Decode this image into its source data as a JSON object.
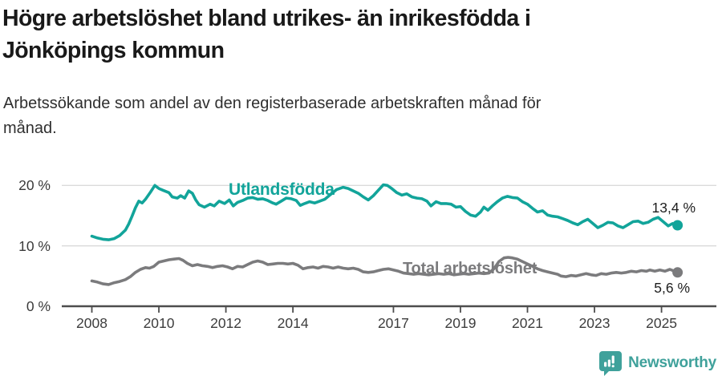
{
  "header": {
    "title_line1": "Högre arbetslöshet bland utrikes- än inrikesfödda i",
    "title_line2": "Jönköpings kommun",
    "subtitle_line1": "Arbetssökande som andel av den registerbaserade arbetskraften månad för",
    "subtitle_line2": "månad."
  },
  "branding": {
    "logo_text": "Newsworthy",
    "brand_color": "#3fa19b"
  },
  "chart_data": {
    "type": "line",
    "unit": "%",
    "grid": "horizontal-only",
    "colors": {
      "utlandsfodda": "#12a49a",
      "total": "#7b7b7d",
      "gridline": "#dadada",
      "axis": "#4d4d4d"
    },
    "x_axis": {
      "ticks": [
        2008,
        2010,
        2012,
        2014,
        2017,
        2019,
        2021,
        2023,
        2025
      ],
      "labels": [
        "2008",
        "2010",
        "2012",
        "2014",
        "2017",
        "2019",
        "2021",
        "2023",
        "2025"
      ],
      "range": [
        2007.9,
        2026.6
      ]
    },
    "y_axis": {
      "ticks": [
        0,
        10,
        20
      ],
      "labels": [
        "0 %",
        "10 %",
        "20 %"
      ],
      "range": [
        0,
        21
      ]
    },
    "series": [
      {
        "name": "Utlandsfödda",
        "color": "#12a49a",
        "end_label": "13,4 %",
        "end_value": 13.4,
        "points": [
          [
            2008.0,
            11.6
          ],
          [
            2008.17,
            11.3
          ],
          [
            2008.33,
            11.1
          ],
          [
            2008.5,
            11.0
          ],
          [
            2008.67,
            11.2
          ],
          [
            2008.83,
            11.7
          ],
          [
            2009.0,
            12.6
          ],
          [
            2009.1,
            13.6
          ],
          [
            2009.2,
            14.9
          ],
          [
            2009.3,
            16.3
          ],
          [
            2009.4,
            17.4
          ],
          [
            2009.5,
            17.1
          ],
          [
            2009.6,
            17.7
          ],
          [
            2009.75,
            18.9
          ],
          [
            2009.88,
            20.0
          ],
          [
            2010.0,
            19.5
          ],
          [
            2010.12,
            19.2
          ],
          [
            2010.3,
            18.8
          ],
          [
            2010.4,
            18.1
          ],
          [
            2010.55,
            17.9
          ],
          [
            2010.65,
            18.3
          ],
          [
            2010.77,
            17.9
          ],
          [
            2010.89,
            19.1
          ],
          [
            2011.0,
            18.7
          ],
          [
            2011.1,
            17.6
          ],
          [
            2011.2,
            16.8
          ],
          [
            2011.36,
            16.4
          ],
          [
            2011.53,
            16.9
          ],
          [
            2011.65,
            16.6
          ],
          [
            2011.8,
            17.4
          ],
          [
            2011.96,
            17.0
          ],
          [
            2012.1,
            17.6
          ],
          [
            2012.22,
            16.6
          ],
          [
            2012.35,
            17.2
          ],
          [
            2012.5,
            17.5
          ],
          [
            2012.65,
            17.9
          ],
          [
            2012.8,
            18.0
          ],
          [
            2012.95,
            17.7
          ],
          [
            2013.1,
            17.8
          ],
          [
            2013.25,
            17.5
          ],
          [
            2013.4,
            17.1
          ],
          [
            2013.5,
            16.9
          ],
          [
            2013.65,
            17.4
          ],
          [
            2013.8,
            17.9
          ],
          [
            2013.95,
            17.8
          ],
          [
            2014.1,
            17.5
          ],
          [
            2014.22,
            16.7
          ],
          [
            2014.35,
            17.0
          ],
          [
            2014.5,
            17.3
          ],
          [
            2014.65,
            17.1
          ],
          [
            2014.8,
            17.4
          ],
          [
            2014.95,
            17.7
          ],
          [
            2015.1,
            18.4
          ],
          [
            2015.3,
            19.3
          ],
          [
            2015.5,
            19.7
          ],
          [
            2015.65,
            19.5
          ],
          [
            2015.8,
            19.1
          ],
          [
            2015.95,
            18.7
          ],
          [
            2016.1,
            18.1
          ],
          [
            2016.25,
            17.6
          ],
          [
            2016.4,
            18.3
          ],
          [
            2016.55,
            19.2
          ],
          [
            2016.7,
            20.1
          ],
          [
            2016.82,
            20.0
          ],
          [
            2016.95,
            19.5
          ],
          [
            2017.1,
            18.8
          ],
          [
            2017.25,
            18.4
          ],
          [
            2017.4,
            18.6
          ],
          [
            2017.55,
            18.1
          ],
          [
            2017.7,
            17.9
          ],
          [
            2017.85,
            17.8
          ],
          [
            2018.0,
            17.4
          ],
          [
            2018.12,
            16.6
          ],
          [
            2018.27,
            17.3
          ],
          [
            2018.42,
            17.0
          ],
          [
            2018.57,
            17.0
          ],
          [
            2018.72,
            16.9
          ],
          [
            2018.87,
            16.4
          ],
          [
            2019.0,
            16.5
          ],
          [
            2019.15,
            15.7
          ],
          [
            2019.3,
            15.1
          ],
          [
            2019.45,
            14.9
          ],
          [
            2019.6,
            15.6
          ],
          [
            2019.7,
            16.4
          ],
          [
            2019.82,
            15.9
          ],
          [
            2019.95,
            16.6
          ],
          [
            2020.1,
            17.3
          ],
          [
            2020.25,
            17.9
          ],
          [
            2020.4,
            18.2
          ],
          [
            2020.55,
            18.0
          ],
          [
            2020.7,
            17.9
          ],
          [
            2020.85,
            17.3
          ],
          [
            2021.0,
            16.9
          ],
          [
            2021.15,
            16.2
          ],
          [
            2021.3,
            15.6
          ],
          [
            2021.45,
            15.8
          ],
          [
            2021.6,
            15.1
          ],
          [
            2021.75,
            14.9
          ],
          [
            2021.9,
            14.8
          ],
          [
            2022.05,
            14.5
          ],
          [
            2022.2,
            14.2
          ],
          [
            2022.35,
            13.8
          ],
          [
            2022.5,
            13.5
          ],
          [
            2022.65,
            14.0
          ],
          [
            2022.8,
            14.4
          ],
          [
            2022.95,
            13.7
          ],
          [
            2023.1,
            13.0
          ],
          [
            2023.25,
            13.4
          ],
          [
            2023.4,
            13.9
          ],
          [
            2023.55,
            13.8
          ],
          [
            2023.7,
            13.3
          ],
          [
            2023.85,
            13.0
          ],
          [
            2024.0,
            13.5
          ],
          [
            2024.15,
            14.0
          ],
          [
            2024.3,
            14.1
          ],
          [
            2024.45,
            13.7
          ],
          [
            2024.6,
            13.9
          ],
          [
            2024.75,
            14.4
          ],
          [
            2024.9,
            14.7
          ],
          [
            2025.05,
            14.0
          ],
          [
            2025.2,
            13.3
          ],
          [
            2025.33,
            13.7
          ],
          [
            2025.48,
            13.4
          ]
        ]
      },
      {
        "name": "Total arbetslöshet",
        "color": "#7b7b7d",
        "end_label": "5,6 %",
        "end_value": 5.6,
        "points": [
          [
            2008.0,
            4.2
          ],
          [
            2008.17,
            4.0
          ],
          [
            2008.33,
            3.7
          ],
          [
            2008.5,
            3.6
          ],
          [
            2008.67,
            3.9
          ],
          [
            2008.83,
            4.1
          ],
          [
            2009.0,
            4.4
          ],
          [
            2009.15,
            4.9
          ],
          [
            2009.3,
            5.6
          ],
          [
            2009.45,
            6.1
          ],
          [
            2009.6,
            6.4
          ],
          [
            2009.72,
            6.3
          ],
          [
            2009.85,
            6.6
          ],
          [
            2010.0,
            7.3
          ],
          [
            2010.15,
            7.5
          ],
          [
            2010.3,
            7.7
          ],
          [
            2010.45,
            7.8
          ],
          [
            2010.6,
            7.9
          ],
          [
            2010.72,
            7.6
          ],
          [
            2010.85,
            7.1
          ],
          [
            2011.0,
            6.7
          ],
          [
            2011.15,
            6.9
          ],
          [
            2011.3,
            6.7
          ],
          [
            2011.45,
            6.6
          ],
          [
            2011.6,
            6.4
          ],
          [
            2011.75,
            6.6
          ],
          [
            2011.9,
            6.7
          ],
          [
            2012.05,
            6.5
          ],
          [
            2012.2,
            6.2
          ],
          [
            2012.35,
            6.6
          ],
          [
            2012.5,
            6.5
          ],
          [
            2012.65,
            6.9
          ],
          [
            2012.8,
            7.3
          ],
          [
            2012.95,
            7.5
          ],
          [
            2013.1,
            7.3
          ],
          [
            2013.25,
            6.9
          ],
          [
            2013.4,
            7.0
          ],
          [
            2013.55,
            7.1
          ],
          [
            2013.7,
            7.1
          ],
          [
            2013.85,
            7.0
          ],
          [
            2014.0,
            7.1
          ],
          [
            2014.15,
            6.8
          ],
          [
            2014.3,
            6.2
          ],
          [
            2014.45,
            6.4
          ],
          [
            2014.6,
            6.5
          ],
          [
            2014.75,
            6.3
          ],
          [
            2014.9,
            6.6
          ],
          [
            2015.05,
            6.5
          ],
          [
            2015.2,
            6.3
          ],
          [
            2015.35,
            6.5
          ],
          [
            2015.5,
            6.3
          ],
          [
            2015.65,
            6.2
          ],
          [
            2015.8,
            6.3
          ],
          [
            2015.95,
            6.1
          ],
          [
            2016.1,
            5.7
          ],
          [
            2016.25,
            5.6
          ],
          [
            2016.4,
            5.7
          ],
          [
            2016.55,
            5.9
          ],
          [
            2016.7,
            6.1
          ],
          [
            2016.85,
            6.2
          ],
          [
            2017.0,
            6.0
          ],
          [
            2017.15,
            5.8
          ],
          [
            2017.3,
            5.5
          ],
          [
            2017.45,
            5.4
          ],
          [
            2017.6,
            5.3
          ],
          [
            2017.75,
            5.4
          ],
          [
            2017.9,
            5.3
          ],
          [
            2018.05,
            5.2
          ],
          [
            2018.2,
            5.3
          ],
          [
            2018.35,
            5.4
          ],
          [
            2018.5,
            5.3
          ],
          [
            2018.65,
            5.4
          ],
          [
            2018.8,
            5.2
          ],
          [
            2018.95,
            5.3
          ],
          [
            2019.1,
            5.4
          ],
          [
            2019.25,
            5.3
          ],
          [
            2019.4,
            5.4
          ],
          [
            2019.55,
            5.5
          ],
          [
            2019.7,
            5.4
          ],
          [
            2019.85,
            5.5
          ],
          [
            2020.0,
            6.2
          ],
          [
            2020.15,
            7.4
          ],
          [
            2020.3,
            8.0
          ],
          [
            2020.42,
            8.1
          ],
          [
            2020.55,
            8.0
          ],
          [
            2020.7,
            7.8
          ],
          [
            2020.85,
            7.4
          ],
          [
            2021.0,
            7.0
          ],
          [
            2021.15,
            6.6
          ],
          [
            2021.3,
            6.2
          ],
          [
            2021.45,
            5.9
          ],
          [
            2021.6,
            5.7
          ],
          [
            2021.75,
            5.5
          ],
          [
            2021.9,
            5.3
          ],
          [
            2022.0,
            5.0
          ],
          [
            2022.15,
            4.9
          ],
          [
            2022.3,
            5.1
          ],
          [
            2022.45,
            5.0
          ],
          [
            2022.6,
            5.2
          ],
          [
            2022.75,
            5.4
          ],
          [
            2022.9,
            5.2
          ],
          [
            2023.05,
            5.1
          ],
          [
            2023.2,
            5.4
          ],
          [
            2023.35,
            5.3
          ],
          [
            2023.5,
            5.5
          ],
          [
            2023.65,
            5.6
          ],
          [
            2023.8,
            5.5
          ],
          [
            2023.95,
            5.6
          ],
          [
            2024.1,
            5.8
          ],
          [
            2024.25,
            5.7
          ],
          [
            2024.4,
            5.9
          ],
          [
            2024.55,
            5.8
          ],
          [
            2024.65,
            6.0
          ],
          [
            2024.8,
            5.8
          ],
          [
            2024.95,
            6.0
          ],
          [
            2025.1,
            5.8
          ],
          [
            2025.25,
            6.1
          ],
          [
            2025.48,
            5.6
          ]
        ]
      }
    ]
  }
}
